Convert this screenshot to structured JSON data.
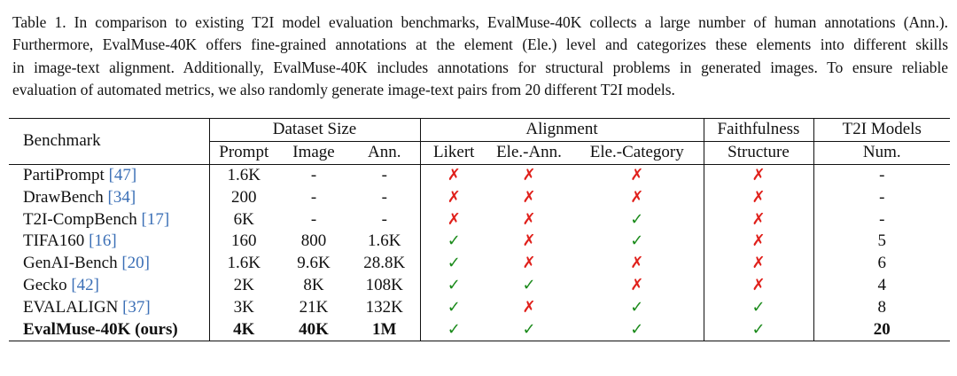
{
  "caption": [
    "Table 1. In comparison to existing T2I model evaluation benchmarks, EvalMuse-40K collects a large number of human annotations (Ann.).",
    "Furthermore, EvalMuse-40K offers fine-grained annotations at the element (Ele.) level and categorizes these elements into different skills",
    "in image-text alignment. Additionally, EvalMuse-40K includes annotations for structural problems in generated images. To ensure reliable",
    "evaluation of automated metrics, we also randomly generate image-text pairs from 20 different T2I models."
  ],
  "header": {
    "benchmark": "Benchmark",
    "dataset_size": "Dataset Size",
    "alignment": "Alignment",
    "faithfulness": "Faithfulness",
    "t2i_models": "T2I Models",
    "prompt": "Prompt",
    "image": "Image",
    "ann": "Ann.",
    "likert": "Likert",
    "ele_ann": "Ele.-Ann.",
    "ele_category": "Ele.-Category",
    "structure": "Structure",
    "num": "Num."
  },
  "rows": [
    {
      "name": "PartiPrompt ",
      "ref": "[47]",
      "prompt": "1.6K",
      "image": "-",
      "ann": "-",
      "likert": "✗",
      "ele_ann": "✗",
      "ele_cat": "✗",
      "structure": "✗",
      "num": "-"
    },
    {
      "name": "DrawBench ",
      "ref": "[34]",
      "prompt": "200",
      "image": "-",
      "ann": "-",
      "likert": "✗",
      "ele_ann": "✗",
      "ele_cat": "✗",
      "structure": "✗",
      "num": "-"
    },
    {
      "name": "T2I-CompBench ",
      "ref": "[17]",
      "prompt": "6K",
      "image": "-",
      "ann": "-",
      "likert": "✗",
      "ele_ann": "✗",
      "ele_cat": "✓",
      "structure": "✗",
      "num": "-"
    },
    {
      "name": "TIFA160 ",
      "ref": "[16]",
      "prompt": "160",
      "image": "800",
      "ann": "1.6K",
      "likert": "✓",
      "ele_ann": "✗",
      "ele_cat": "✓",
      "structure": "✗",
      "num": "5"
    },
    {
      "name": "GenAI-Bench ",
      "ref": "[20]",
      "prompt": "1.6K",
      "image": "9.6K",
      "ann": "28.8K",
      "likert": "✓",
      "ele_ann": "✗",
      "ele_cat": "✗",
      "structure": "✗",
      "num": "6"
    },
    {
      "name": "Gecko ",
      "ref": "[42]",
      "prompt": "2K",
      "image": "8K",
      "ann": "108K",
      "likert": "✓",
      "ele_ann": "✓",
      "ele_cat": "✗",
      "structure": "✗",
      "num": "4"
    },
    {
      "name": "EVALALIGN ",
      "ref": "[37]",
      "prompt": "3K",
      "image": "21K",
      "ann": "132K",
      "likert": "✓",
      "ele_ann": "✗",
      "ele_cat": "✓",
      "structure": "✓",
      "num": "8"
    },
    {
      "name": "EvalMuse-40K (ours)",
      "ref": "",
      "prompt": "4K",
      "image": "40K",
      "ann": "1M",
      "likert": "✓",
      "ele_ann": "✓",
      "ele_cat": "✓",
      "structure": "✓",
      "num": "20"
    }
  ],
  "colors": {
    "check": "#1a8a1a",
    "cross": "#e0201b",
    "ref": "#3b6fb6"
  }
}
